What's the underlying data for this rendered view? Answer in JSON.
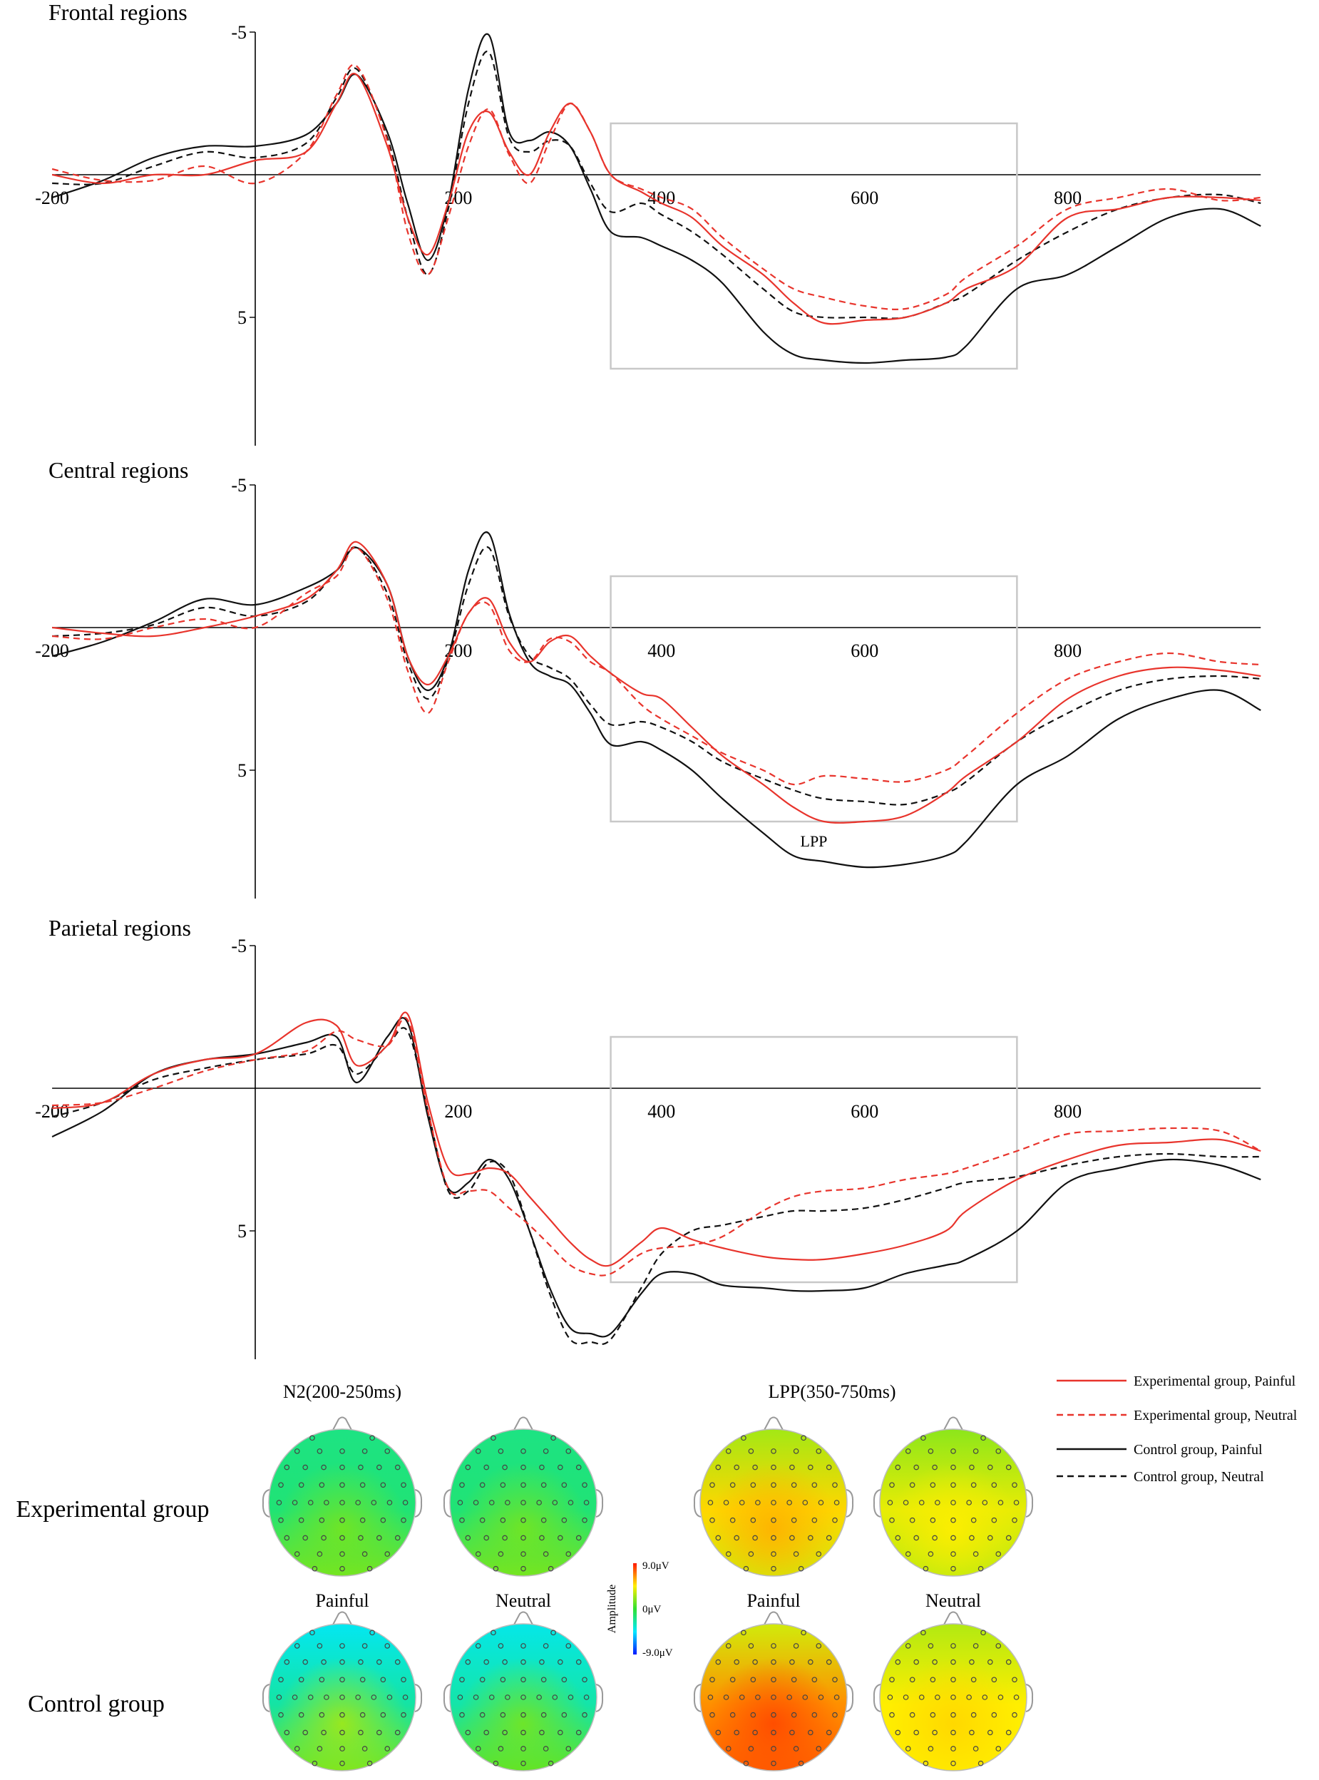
{
  "chart_data": {
    "type": "line",
    "x_unit": "ms",
    "y_unit": "μV",
    "xlim": [
      -200,
      990
    ],
    "ylim": [
      -5,
      9.5
    ],
    "y_inverted": true,
    "xticks": [
      -200,
      200,
      400,
      600,
      800
    ],
    "xtick_labels": [
      "-200",
      "200",
      "400",
      "600",
      "800"
    ],
    "yticks": [
      -5,
      5
    ],
    "ytick_labels": [
      "-5",
      "5"
    ],
    "window_ms": [
      350,
      750
    ],
    "window_uv": [
      -1.8,
      6.8
    ],
    "legend": [
      {
        "name": "Experimental group, Painful",
        "color": "#e8342c",
        "dash": "solid"
      },
      {
        "name": "Experimental group, Neutral",
        "color": "#e8342c",
        "dash": "dashed"
      },
      {
        "name": "Control group, Painful",
        "color": "#111111",
        "dash": "solid"
      },
      {
        "name": "Control group, Neutral",
        "color": "#111111",
        "dash": "dashed"
      }
    ],
    "panels": [
      {
        "title": "Frontal regions",
        "window_label": "",
        "x": [
          -200,
          -150,
          -100,
          -50,
          0,
          50,
          80,
          100,
          130,
          150,
          170,
          190,
          210,
          230,
          250,
          270,
          290,
          310,
          330,
          350,
          380,
          400,
          430,
          460,
          500,
          530,
          560,
          600,
          640,
          680,
          700,
          750,
          800,
          850,
          900,
          950,
          990
        ],
        "series": [
          {
            "name": "Experimental group, Painful",
            "values": [
              0,
              0.3,
              0,
              0,
              -0.5,
              -0.8,
              -2.5,
              -3.5,
              -1.0,
              1.5,
              2.8,
              1.0,
              -1.5,
              -2.2,
              -0.8,
              0,
              -1.5,
              -2.5,
              -1.5,
              0,
              0.6,
              1.0,
              1.5,
              2.5,
              3.5,
              4.5,
              5.2,
              5.1,
              5.0,
              4.5,
              4.0,
              3.2,
              1.5,
              1.2,
              0.8,
              0.8,
              0.9
            ]
          },
          {
            "name": "Experimental group, Neutral",
            "values": [
              -0.2,
              0.2,
              0.2,
              -0.3,
              0.3,
              -0.8,
              -2.8,
              -3.8,
              -1.2,
              2.0,
              3.5,
              1.5,
              -1.0,
              -2.3,
              -0.7,
              0.3,
              -1.2,
              -2.5,
              -1.5,
              0,
              0.5,
              0.8,
              1.2,
              2.2,
              3.3,
              4.0,
              4.3,
              4.6,
              4.7,
              4.2,
              3.6,
              2.5,
              1.2,
              0.8,
              0.5,
              0.9,
              0.8
            ]
          },
          {
            "name": "Control group, Painful",
            "values": [
              0.8,
              0.2,
              -0.6,
              -1.0,
              -1.0,
              -1.4,
              -2.5,
              -3.5,
              -1.5,
              1.0,
              3.0,
              1.0,
              -3.0,
              -4.9,
              -1.5,
              -1.2,
              -1.5,
              -1.0,
              0.5,
              2.0,
              2.2,
              2.5,
              3.0,
              3.8,
              5.5,
              6.3,
              6.5,
              6.6,
              6.5,
              6.4,
              6.0,
              4.0,
              3.5,
              2.5,
              1.5,
              1.2,
              1.8
            ]
          },
          {
            "name": "Control group, Neutral",
            "values": [
              0.3,
              0.3,
              -0.3,
              -0.8,
              -0.6,
              -1.1,
              -2.7,
              -3.7,
              -1.3,
              1.5,
              3.5,
              1.2,
              -2.5,
              -4.3,
              -1.3,
              -0.8,
              -1.2,
              -1.0,
              0.3,
              1.3,
              1.0,
              1.4,
              2.0,
              2.8,
              4.0,
              4.8,
              5.0,
              5.0,
              5.0,
              4.5,
              4.2,
              3.0,
              2.0,
              1.2,
              0.8,
              0.7,
              1.0
            ]
          }
        ]
      },
      {
        "title": "Central regions",
        "window_label": "LPP",
        "x": [
          -200,
          -150,
          -100,
          -50,
          0,
          50,
          80,
          100,
          130,
          150,
          170,
          190,
          210,
          230,
          250,
          270,
          290,
          310,
          330,
          350,
          380,
          400,
          430,
          460,
          500,
          530,
          560,
          600,
          640,
          680,
          700,
          750,
          800,
          850,
          900,
          950,
          990
        ],
        "series": [
          {
            "name": "Experimental group, Painful",
            "values": [
              0,
              0.2,
              0.3,
              0,
              -0.4,
              -1.0,
              -2.0,
              -3.0,
              -1.5,
              1.0,
              2.0,
              1.0,
              -0.5,
              -1.0,
              0.5,
              1.2,
              0.5,
              0.3,
              1.0,
              1.6,
              2.3,
              2.5,
              3.5,
              4.5,
              5.5,
              6.3,
              6.8,
              6.8,
              6.6,
              5.8,
              5.2,
              4.0,
              2.5,
              1.7,
              1.4,
              1.5,
              1.7
            ]
          },
          {
            "name": "Experimental group, Neutral",
            "values": [
              0.3,
              0.4,
              0,
              -0.3,
              0,
              -1.2,
              -1.8,
              -2.8,
              -1.0,
              1.5,
              3.0,
              1.2,
              -0.5,
              -0.8,
              0.8,
              1.2,
              0.4,
              0.5,
              1.2,
              1.6,
              2.7,
              3.2,
              3.8,
              4.4,
              5.0,
              5.5,
              5.2,
              5.3,
              5.4,
              5.0,
              4.5,
              3.0,
              1.8,
              1.2,
              0.9,
              1.2,
              1.3
            ]
          },
          {
            "name": "Control group, Painful",
            "values": [
              1.0,
              0.5,
              -0.2,
              -1.0,
              -0.8,
              -1.4,
              -2.0,
              -2.8,
              -1.5,
              1.0,
              2.2,
              1.0,
              -2.0,
              -3.3,
              -0.5,
              1.2,
              1.7,
              2.0,
              3.0,
              4.1,
              4.0,
              4.3,
              5.0,
              6.0,
              7.2,
              8.0,
              8.2,
              8.4,
              8.3,
              8.0,
              7.5,
              5.5,
              4.5,
              3.2,
              2.5,
              2.2,
              2.9
            ]
          },
          {
            "name": "Control group, Neutral",
            "values": [
              0.3,
              0.2,
              -0.1,
              -0.7,
              -0.4,
              -0.9,
              -2.0,
              -2.8,
              -1.2,
              1.2,
              2.5,
              1.1,
              -1.5,
              -2.8,
              -0.4,
              1.0,
              1.4,
              1.8,
              2.7,
              3.4,
              3.3,
              3.5,
              4.0,
              4.7,
              5.3,
              5.7,
              6.0,
              6.1,
              6.2,
              5.8,
              5.4,
              4.0,
              3.0,
              2.2,
              1.8,
              1.7,
              1.8
            ]
          }
        ]
      },
      {
        "title": "Parietal regions",
        "window_label": "",
        "x": [
          -200,
          -150,
          -100,
          -50,
          0,
          50,
          80,
          100,
          130,
          150,
          170,
          190,
          210,
          230,
          250,
          270,
          290,
          310,
          330,
          350,
          380,
          400,
          430,
          460,
          500,
          530,
          560,
          600,
          640,
          680,
          700,
          750,
          800,
          850,
          900,
          950,
          990
        ],
        "series": [
          {
            "name": "Experimental group, Painful",
            "values": [
              0.7,
              0.5,
              -0.5,
              -1.0,
              -1.2,
              -2.3,
              -2.2,
              -0.8,
              -1.5,
              -2.6,
              0.5,
              2.8,
              3.0,
              2.8,
              3.0,
              3.8,
              4.6,
              5.4,
              6.0,
              6.2,
              5.4,
              4.9,
              5.3,
              5.6,
              5.9,
              6.0,
              6.0,
              5.8,
              5.5,
              5.0,
              4.3,
              3.2,
              2.5,
              2.0,
              1.9,
              1.8,
              2.2
            ]
          },
          {
            "name": "Experimental group, Neutral",
            "values": [
              0.6,
              0.5,
              0,
              -0.6,
              -1.0,
              -1.3,
              -2.0,
              -1.7,
              -1.5,
              -2.4,
              0.8,
              3.5,
              3.6,
              3.6,
              4.2,
              4.8,
              5.5,
              6.2,
              6.5,
              6.5,
              5.8,
              5.6,
              5.5,
              5.2,
              4.3,
              3.8,
              3.6,
              3.5,
              3.2,
              3.0,
              2.8,
              2.2,
              1.6,
              1.5,
              1.4,
              1.5,
              2.2
            ]
          },
          {
            "name": "Control group, Painful",
            "values": [
              1.7,
              0.8,
              -0.5,
              -1.0,
              -1.2,
              -1.6,
              -1.8,
              -0.2,
              -1.8,
              -2.3,
              1.0,
              3.5,
              3.3,
              2.5,
              3.2,
              5.0,
              7.0,
              8.4,
              8.6,
              8.6,
              7.2,
              6.5,
              6.5,
              6.9,
              7.0,
              7.1,
              7.1,
              7.0,
              6.5,
              6.2,
              6.0,
              5.0,
              3.3,
              2.8,
              2.5,
              2.7,
              3.2
            ]
          },
          {
            "name": "Control group, Neutral",
            "values": [
              1.0,
              0.5,
              -0.3,
              -0.7,
              -1.0,
              -1.2,
              -1.5,
              -0.5,
              -1.5,
              -2.0,
              0.8,
              3.6,
              3.6,
              2.6,
              3.0,
              5.0,
              7.2,
              8.8,
              8.9,
              8.8,
              7.0,
              5.8,
              5.0,
              4.8,
              4.5,
              4.3,
              4.3,
              4.2,
              3.9,
              3.5,
              3.3,
              3.1,
              2.7,
              2.4,
              2.3,
              2.4,
              2.4
            ]
          }
        ]
      }
    ],
    "topomaps": {
      "row_labels": [
        "Experimental group",
        "Control group"
      ],
      "window_titles": [
        "N2(200-250ms)",
        "LPP(350-750ms)"
      ],
      "column_labels": [
        "Painful",
        "Neutral",
        "Painful",
        "Neutral"
      ],
      "colorbar": {
        "max_label": "9.0μV",
        "mid_label": "0μV",
        "min_label": "-9.0μV",
        "title": "Amplitude",
        "range": [
          -9,
          9
        ]
      },
      "maps": [
        [
          {
            "front": -1.8,
            "center": -1.5,
            "back": 1.5,
            "hot": 1.5
          },
          {
            "front": -1.8,
            "center": -1.5,
            "back": 1.5,
            "hot": 1.5
          },
          {
            "front": 2.5,
            "center": 5.0,
            "back": 3.5,
            "hot": 5.8
          },
          {
            "front": 2.0,
            "center": 4.0,
            "back": 3.0,
            "hot": 4.5
          }
        ],
        [
          {
            "front": -4.2,
            "center": -2.5,
            "back": 1.5,
            "hot": 2.5
          },
          {
            "front": -4.0,
            "center": -2.6,
            "back": 1.0,
            "hot": 1.5
          },
          {
            "front": 3.5,
            "center": 6.5,
            "back": 7.5,
            "hot": 8.0
          },
          {
            "front": 2.8,
            "center": 4.5,
            "back": 4.5,
            "hot": 5.0
          }
        ]
      ]
    }
  }
}
